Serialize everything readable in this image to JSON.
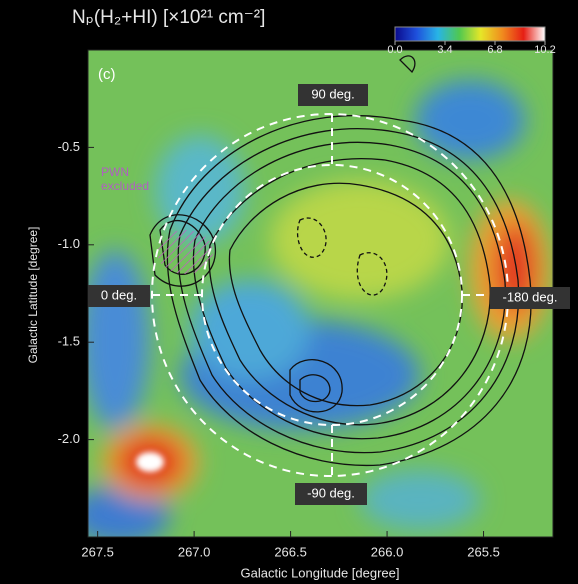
{
  "chart_data": {
    "type": "map",
    "title": "Nₚ(H₂+HI) [×10²¹ cm⁻²]",
    "panel_label": "(c)",
    "xlabel": "Galactic Longitude [degree]",
    "ylabel": "Galactic Latitude [degree]",
    "xlim": [
      267.55,
      265.14
    ],
    "xticks": [
      267.5,
      {
        "value": 267,
        "label": "267.0"
      },
      266.5,
      {
        "value": 266,
        "label": "266.0"
      },
      265.5
    ],
    "ylim": [
      -2.5,
      0.0
    ],
    "yticks": [
      -0.5,
      {
        "value": -1,
        "label": "-1.0"
      },
      -1.5,
      {
        "value": -2,
        "label": "-2.0"
      }
    ],
    "colorbar": {
      "lim": [
        0,
        10.2
      ],
      "ticks": [
        {
          "value": 0,
          "label": "0.0"
        },
        3.4,
        6.8,
        10.2
      ],
      "colors": [
        "#0a0a8c",
        "#1e50dc",
        "#28b4e6",
        "#50c850",
        "#e6e628",
        "#f08c1e",
        "#e61e14",
        "#ffffff"
      ]
    },
    "annotations": [
      "90 deg.",
      "0 deg.",
      "-180 deg.",
      "-90 deg."
    ],
    "pwn_label": [
      "PWN",
      "excluded"
    ]
  }
}
